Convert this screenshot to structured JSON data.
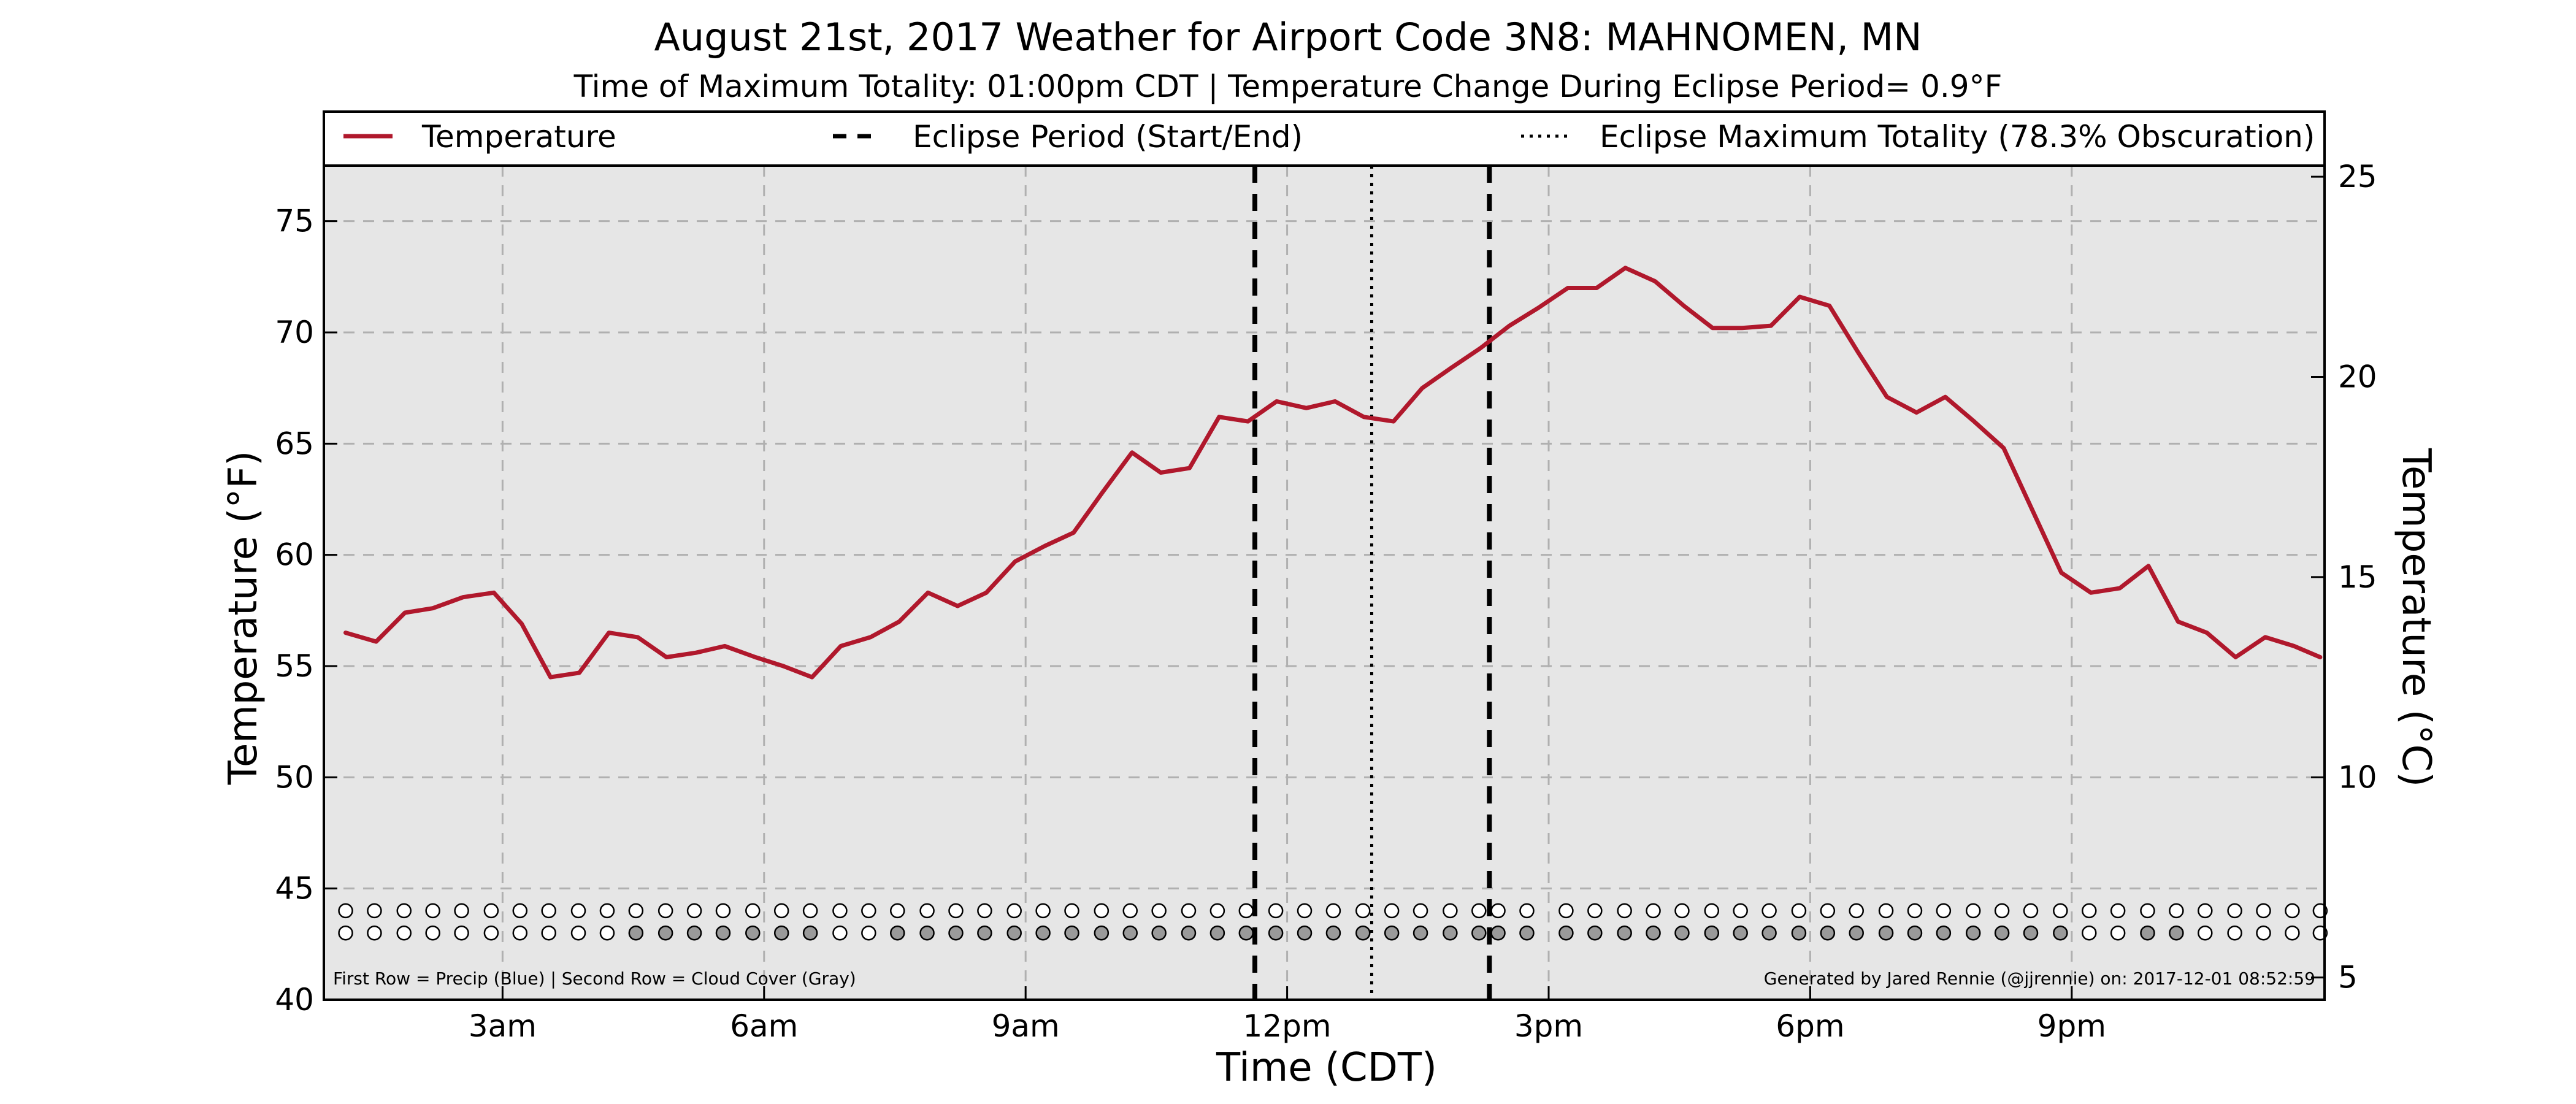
{
  "chart_data": {
    "type": "line",
    "title": "August 21st, 2017 Weather for Airport Code 3N8: MAHNOMEN, MN",
    "subtitle": "Time of Maximum Totality: 01:00pm CDT | Temperature Change During Eclipse Period= 0.9°F",
    "xlabel": "Time (CDT)",
    "ylabel": "Temperature (°F)",
    "ylabel_right": "Temperature (°C)",
    "xlim_hours": [
      0.95,
      23.9
    ],
    "ylim": [
      40,
      77.5
    ],
    "x_ticks": [
      {
        "hour": 3,
        "label": "3am"
      },
      {
        "hour": 6,
        "label": "6am"
      },
      {
        "hour": 9,
        "label": "9am"
      },
      {
        "hour": 12,
        "label": "12pm"
      },
      {
        "hour": 15,
        "label": "3pm"
      },
      {
        "hour": 18,
        "label": "6pm"
      },
      {
        "hour": 21,
        "label": "9pm"
      }
    ],
    "y_ticks": [
      40,
      45,
      50,
      55,
      60,
      65,
      70,
      75
    ],
    "y_ticks_right": [
      5,
      10,
      15,
      20,
      25
    ],
    "grid": true,
    "legend_placement": "top",
    "legend": [
      {
        "label": "Temperature",
        "style": "solid"
      },
      {
        "label": "Eclipse Period (Start/End)",
        "style": "dashed"
      },
      {
        "label": "Eclipse Maximum Totality (78.3% Obscuration)",
        "style": "dotted"
      }
    ],
    "eclipse_start_hour": 11.63,
    "eclipse_end_hour": 14.32,
    "eclipse_max_hour": 12.97,
    "series": [
      {
        "name": "Temperature",
        "color": "#b0182c",
        "points": [
          [
            1.2,
            56.5
          ],
          [
            1.55,
            56.1
          ],
          [
            1.88,
            57.4
          ],
          [
            2.2,
            57.6
          ],
          [
            2.55,
            58.1
          ],
          [
            2.9,
            58.3
          ],
          [
            3.22,
            56.9
          ],
          [
            3.55,
            54.5
          ],
          [
            3.88,
            54.7
          ],
          [
            4.22,
            56.5
          ],
          [
            4.55,
            56.3
          ],
          [
            4.88,
            55.4
          ],
          [
            5.22,
            55.6
          ],
          [
            5.55,
            55.9
          ],
          [
            5.9,
            55.4
          ],
          [
            6.22,
            55.0
          ],
          [
            6.55,
            54.5
          ],
          [
            6.88,
            55.9
          ],
          [
            7.22,
            56.3
          ],
          [
            7.55,
            57.0
          ],
          [
            7.88,
            58.3
          ],
          [
            8.22,
            57.7
          ],
          [
            8.55,
            58.3
          ],
          [
            8.88,
            59.7
          ],
          [
            9.22,
            60.4
          ],
          [
            9.55,
            61.0
          ],
          [
            9.88,
            62.8
          ],
          [
            10.22,
            64.6
          ],
          [
            10.55,
            63.7
          ],
          [
            10.88,
            63.9
          ],
          [
            11.22,
            66.2
          ],
          [
            11.55,
            66.0
          ],
          [
            11.88,
            66.9
          ],
          [
            12.22,
            66.6
          ],
          [
            12.55,
            66.9
          ],
          [
            12.88,
            66.2
          ],
          [
            13.22,
            66.0
          ],
          [
            13.55,
            67.5
          ],
          [
            13.88,
            68.4
          ],
          [
            14.22,
            69.3
          ],
          [
            14.55,
            70.3
          ],
          [
            14.88,
            71.1
          ],
          [
            15.22,
            72.0
          ],
          [
            15.55,
            72.0
          ],
          [
            15.88,
            72.9
          ],
          [
            16.22,
            72.3
          ],
          [
            16.55,
            71.2
          ],
          [
            16.88,
            70.2
          ],
          [
            17.22,
            70.2
          ],
          [
            17.55,
            70.3
          ],
          [
            17.88,
            71.6
          ],
          [
            18.22,
            71.2
          ],
          [
            18.55,
            69.1
          ],
          [
            18.88,
            67.1
          ],
          [
            19.22,
            66.4
          ],
          [
            19.55,
            67.1
          ],
          [
            19.88,
            66.0
          ],
          [
            20.22,
            64.8
          ],
          [
            20.55,
            62.0
          ],
          [
            20.88,
            59.2
          ],
          [
            21.22,
            58.3
          ],
          [
            21.55,
            58.5
          ],
          [
            21.88,
            59.5
          ],
          [
            22.22,
            57.0
          ],
          [
            22.55,
            56.5
          ],
          [
            22.88,
            55.4
          ],
          [
            23.22,
            56.3
          ],
          [
            23.55,
            55.9
          ],
          [
            23.85,
            55.4
          ]
        ]
      }
    ],
    "precip_row": {
      "y": 44.0,
      "hours": [
        1.2,
        1.53,
        1.87,
        2.2,
        2.53,
        2.87,
        3.2,
        3.53,
        3.87,
        4.2,
        4.53,
        4.87,
        5.2,
        5.53,
        5.87,
        6.2,
        6.53,
        6.87,
        7.2,
        7.53,
        7.87,
        8.2,
        8.53,
        8.87,
        9.2,
        9.53,
        9.87,
        10.2,
        10.53,
        10.87,
        11.2,
        11.53,
        11.87,
        12.2,
        12.53,
        12.87,
        13.2,
        13.53,
        13.87,
        14.2,
        14.42,
        14.75,
        15.2,
        15.53,
        15.87,
        16.2,
        16.53,
        16.87,
        17.2,
        17.53,
        17.87,
        18.2,
        18.53,
        18.87,
        19.2,
        19.53,
        19.87,
        20.2,
        20.53,
        20.87,
        21.2,
        21.53,
        21.87,
        22.2,
        22.53,
        22.87,
        23.2,
        23.53,
        23.85
      ],
      "values": [
        0,
        0,
        0,
        0,
        0,
        0,
        0,
        0,
        0,
        0,
        0,
        0,
        0,
        0,
        0,
        0,
        0,
        0,
        0,
        0,
        0,
        0,
        0,
        0,
        0,
        0,
        0,
        0,
        0,
        0,
        0,
        0,
        0,
        0,
        0,
        0,
        0,
        0,
        0,
        0,
        0,
        0,
        0,
        0,
        0,
        0,
        0,
        0,
        0,
        0,
        0,
        0,
        0,
        0,
        0,
        0,
        0,
        0,
        0,
        0,
        0,
        0,
        0,
        0,
        0,
        0,
        0,
        0,
        0
      ]
    },
    "cloud_row": {
      "y": 43.0,
      "hours": [
        1.2,
        1.53,
        1.87,
        2.2,
        2.53,
        2.87,
        3.2,
        3.53,
        3.87,
        4.2,
        4.53,
        4.87,
        5.2,
        5.53,
        5.87,
        6.2,
        6.53,
        6.87,
        7.2,
        7.53,
        7.87,
        8.2,
        8.53,
        8.87,
        9.2,
        9.53,
        9.87,
        10.2,
        10.53,
        10.87,
        11.2,
        11.53,
        11.87,
        12.2,
        12.53,
        12.87,
        13.2,
        13.53,
        13.87,
        14.2,
        14.42,
        14.75,
        15.2,
        15.53,
        15.87,
        16.2,
        16.53,
        16.87,
        17.2,
        17.53,
        17.87,
        18.2,
        18.53,
        18.87,
        19.2,
        19.53,
        19.87,
        20.2,
        20.53,
        20.87,
        21.2,
        21.53,
        21.87,
        22.2,
        22.53,
        22.87,
        23.2,
        23.53,
        23.85
      ],
      "covered": [
        0,
        0,
        0,
        0,
        0,
        0,
        0,
        0,
        0,
        0,
        1,
        1,
        1,
        1,
        1,
        1,
        1,
        0,
        0,
        1,
        1,
        1,
        1,
        1,
        1,
        1,
        1,
        1,
        1,
        1,
        1,
        1,
        1,
        1,
        1,
        1,
        1,
        1,
        1,
        1,
        1,
        1,
        1,
        1,
        1,
        1,
        1,
        1,
        1,
        1,
        1,
        1,
        1,
        1,
        1,
        1,
        1,
        1,
        1,
        1,
        0,
        0,
        1,
        1,
        0,
        0,
        0,
        0,
        0
      ]
    },
    "footnote_left": "First Row = Precip (Blue) | Second Row = Cloud Cover (Gray)",
    "footnote_right": "Generated by Jared Rennie (@jjrennie) on: 2017-12-01 08:52:59"
  },
  "colors": {
    "plot_background": "#e6e6e6",
    "temperature_line": "#b0182c",
    "cloud_fill": "#9a9a9a",
    "grid": "#b0b0b0"
  }
}
